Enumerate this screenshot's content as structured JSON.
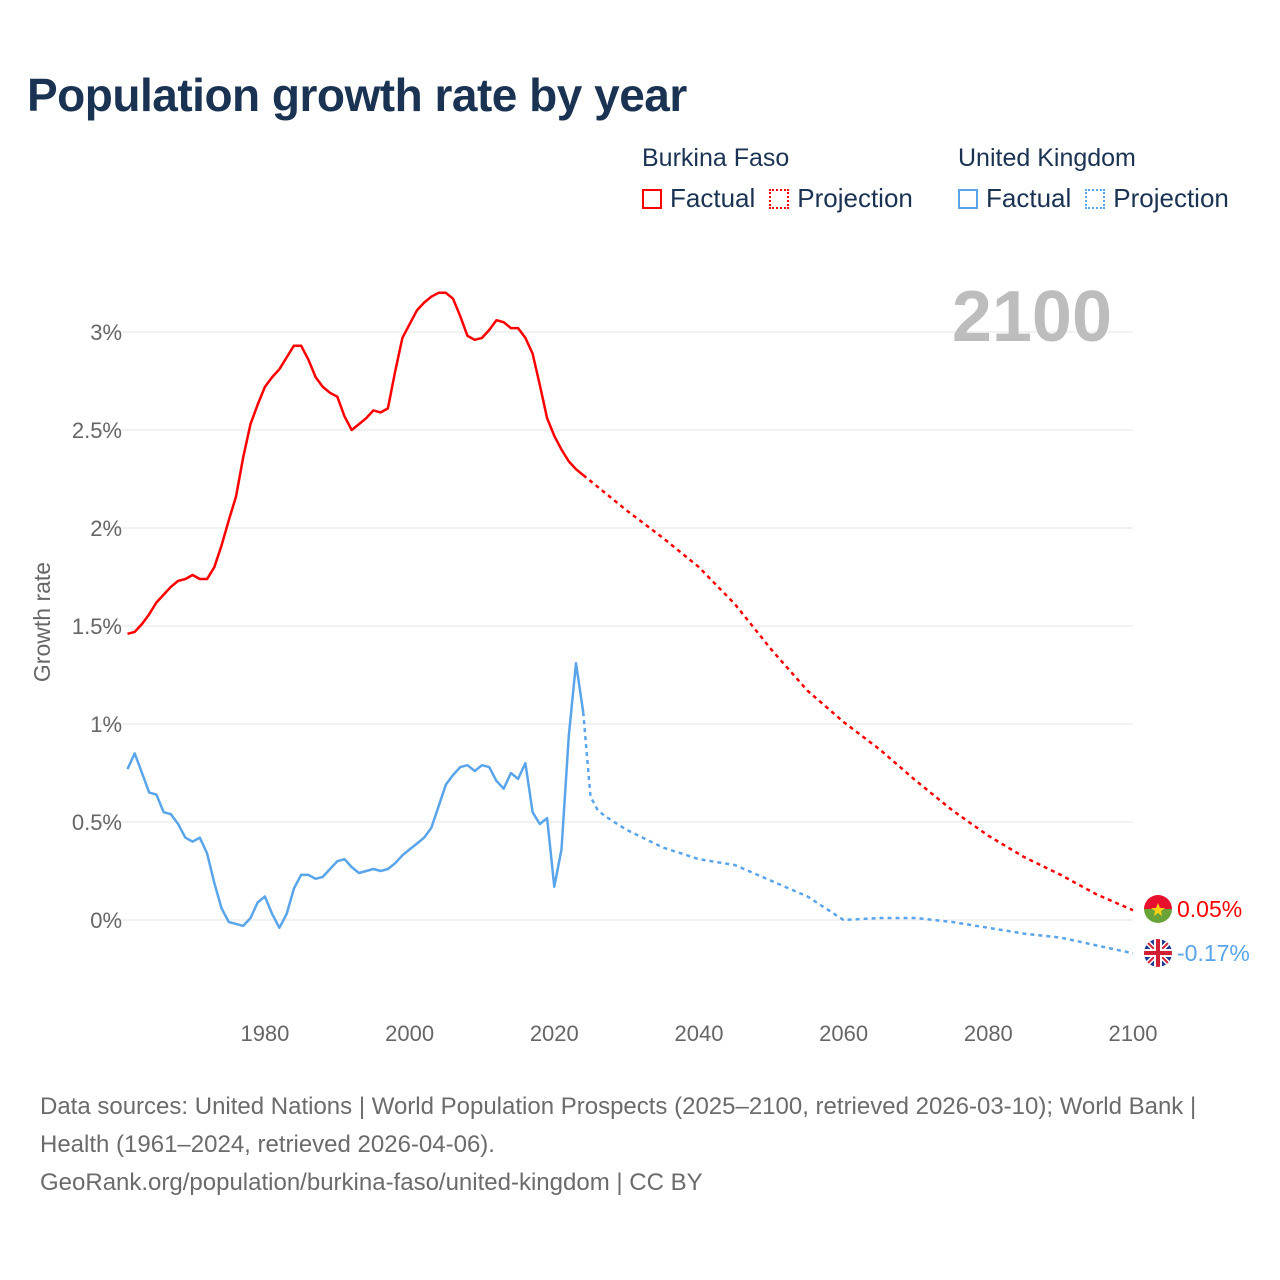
{
  "title": "Population growth rate by year",
  "legend": {
    "groups": [
      {
        "country": "Burkina Faso",
        "factual": "Factual",
        "projection": "Projection",
        "color": "#ff0000"
      },
      {
        "country": "United Kingdom",
        "factual": "Factual",
        "projection": "Projection",
        "color": "#5aa5ea"
      }
    ]
  },
  "year_display": "2100",
  "end_labels": {
    "burkina": "0.05%",
    "uk": "-0.17%"
  },
  "icons": {
    "burkina": "burkina-faso-flag-icon",
    "uk": "united-kingdom-flag-icon"
  },
  "sources": {
    "line1": "Data sources: United Nations | World Population Prospects (2025–2100, retrieved 2026-03-10); World Bank | Health (1961–2024, retrieved 2026-04-06).",
    "line2": "GeoRank.org/population/burkina-faso/united-kingdom | CC BY"
  },
  "chart_data": {
    "type": "line",
    "title": "Population growth rate by year",
    "xlabel": "",
    "ylabel": "Growth rate",
    "xlim": [
      1961,
      2100
    ],
    "ylim": [
      -0.25,
      3.3
    ],
    "grid": true,
    "legend_placement": "top-right",
    "x_ticks": [
      1980,
      2000,
      2020,
      2040,
      2060,
      2080,
      2100
    ],
    "x_tick_labels": [
      "1980",
      "2000",
      "2020",
      "2040",
      "2060",
      "2080",
      "2100"
    ],
    "y_ticks": [
      0,
      0.5,
      1,
      1.5,
      2,
      2.5,
      3
    ],
    "y_tick_labels": [
      "0%",
      "0.5%",
      "1%",
      "1.5%",
      "2%",
      "2.5%",
      "3%"
    ],
    "series": [
      {
        "name": "Burkina Faso Factual",
        "color": "#ff0000",
        "style": "solid",
        "start_year": 1961,
        "values": [
          1.46,
          1.47,
          1.51,
          1.56,
          1.62,
          1.66,
          1.7,
          1.73,
          1.74,
          1.76,
          1.74,
          1.74,
          1.8,
          1.91,
          2.04,
          2.16,
          2.36,
          2.53,
          2.63,
          2.72,
          2.77,
          2.81,
          2.87,
          2.93,
          2.93,
          2.86,
          2.77,
          2.72,
          2.69,
          2.67,
          2.57,
          2.5,
          2.53,
          2.56,
          2.6,
          2.59,
          2.61,
          2.8,
          2.97,
          3.04,
          3.11,
          3.15,
          3.18,
          3.2,
          3.2,
          3.17,
          3.08,
          2.98,
          2.96,
          2.97,
          3.01,
          3.06,
          3.05,
          3.02,
          3.02,
          2.97,
          2.89,
          2.73,
          2.56,
          2.47,
          2.4,
          2.34,
          2.3,
          2.27
        ]
      },
      {
        "name": "Burkina Faso Projection",
        "color": "#ff0000",
        "style": "dotted",
        "years": [
          2024,
          2025,
          2030,
          2035,
          2040,
          2045,
          2050,
          2055,
          2060,
          2065,
          2070,
          2075,
          2080,
          2085,
          2090,
          2095,
          2100
        ],
        "values": [
          2.27,
          2.24,
          2.09,
          1.95,
          1.8,
          1.61,
          1.38,
          1.17,
          1.01,
          0.87,
          0.71,
          0.56,
          0.43,
          0.32,
          0.23,
          0.13,
          0.05
        ]
      },
      {
        "name": "United Kingdom Factual",
        "color": "#5aa5ea",
        "style": "solid",
        "start_year": 1961,
        "values": [
          0.77,
          0.85,
          0.75,
          0.65,
          0.64,
          0.55,
          0.54,
          0.49,
          0.42,
          0.4,
          0.42,
          0.34,
          0.19,
          0.06,
          -0.01,
          -0.02,
          -0.03,
          0.01,
          0.09,
          0.12,
          0.03,
          -0.04,
          0.03,
          0.16,
          0.23,
          0.23,
          0.21,
          0.22,
          0.26,
          0.3,
          0.31,
          0.27,
          0.24,
          0.25,
          0.26,
          0.25,
          0.26,
          0.29,
          0.33,
          0.36,
          0.39,
          0.42,
          0.47,
          0.58,
          0.69,
          0.74,
          0.78,
          0.79,
          0.76,
          0.79,
          0.78,
          0.71,
          0.67,
          0.75,
          0.72,
          0.8,
          0.55,
          0.49,
          0.52,
          0.17,
          0.36,
          0.94,
          1.31,
          1.06
        ]
      },
      {
        "name": "United Kingdom Projection",
        "color": "#5aa5ea",
        "style": "dotted",
        "years": [
          2024,
          2025,
          2026,
          2027,
          2030,
          2035,
          2040,
          2045,
          2050,
          2055,
          2060,
          2065,
          2070,
          2075,
          2080,
          2085,
          2090,
          2095,
          2100
        ],
        "values": [
          1.06,
          0.63,
          0.56,
          0.53,
          0.46,
          0.37,
          0.31,
          0.28,
          0.2,
          0.12,
          0.0,
          0.01,
          0.01,
          -0.01,
          -0.04,
          -0.07,
          -0.09,
          -0.13,
          -0.17
        ]
      }
    ]
  }
}
